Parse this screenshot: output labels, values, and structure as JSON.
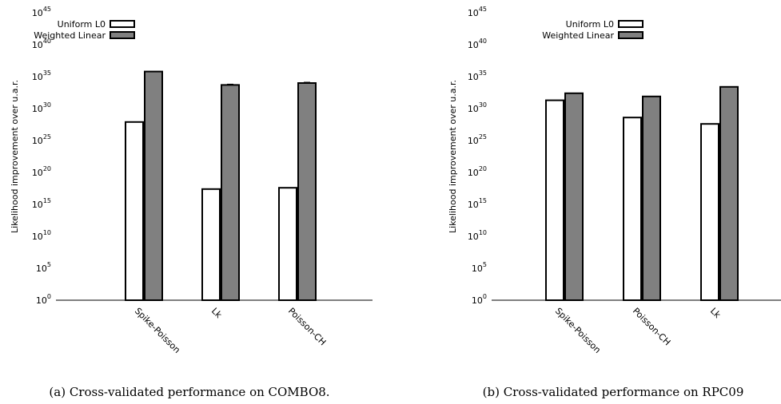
{
  "colors": {
    "uniform": "#ffffff",
    "weighted": "#808080",
    "stroke": "#000000"
  },
  "chart_data": [
    {
      "type": "bar",
      "scale": "log10",
      "ylabel": "Likelihood improvement over u.a.r.",
      "ylim_exponent": [
        0,
        45
      ],
      "yticks": [
        {
          "base": "10",
          "exp": "45"
        },
        {
          "base": "10",
          "exp": "40"
        },
        {
          "base": "10",
          "exp": "35"
        },
        {
          "base": "10",
          "exp": "30"
        },
        {
          "base": "10",
          "exp": "25"
        },
        {
          "base": "10",
          "exp": "20"
        },
        {
          "base": "10",
          "exp": "15"
        },
        {
          "base": "10",
          "exp": "10"
        },
        {
          "base": "10",
          "exp": "5"
        },
        {
          "base": "10",
          "exp": "0"
        }
      ],
      "categories": [
        "Spike-Poisson",
        "Lk",
        "Poisson-CH"
      ],
      "series": [
        {
          "name": "Uniform L0",
          "log10_values": [
            27.9,
            17.4,
            17.6
          ]
        },
        {
          "name": "Weighted Linear",
          "log10_values": [
            35.8,
            33.7,
            34.0
          ]
        }
      ],
      "legend": "top-left",
      "caption": "(a) Cross-validated performance on COMBO8."
    },
    {
      "type": "bar",
      "scale": "log10",
      "ylabel": "Likelihood improvement over u.a.r.",
      "ylim_exponent": [
        0,
        45
      ],
      "yticks": [
        {
          "base": "10",
          "exp": "45"
        },
        {
          "base": "10",
          "exp": "40"
        },
        {
          "base": "10",
          "exp": "35"
        },
        {
          "base": "10",
          "exp": "30"
        },
        {
          "base": "10",
          "exp": "25"
        },
        {
          "base": "10",
          "exp": "20"
        },
        {
          "base": "10",
          "exp": "15"
        },
        {
          "base": "10",
          "exp": "10"
        },
        {
          "base": "10",
          "exp": "5"
        },
        {
          "base": "10",
          "exp": "0"
        }
      ],
      "categories": [
        "Spike-Poisson",
        "Poisson-CH",
        "Lk"
      ],
      "series": [
        {
          "name": "Uniform L0",
          "log10_values": [
            31.3,
            28.6,
            27.6
          ]
        },
        {
          "name": "Weighted Linear",
          "log10_values": [
            32.4,
            31.9,
            33.4
          ]
        }
      ],
      "legend": "top-left",
      "caption": "(b) Cross-validated performance on RPC09"
    }
  ]
}
